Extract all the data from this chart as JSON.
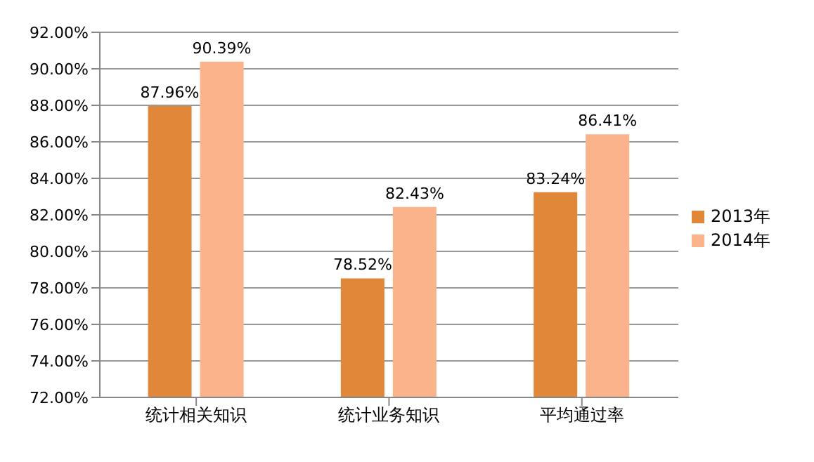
{
  "chart_data": {
    "type": "bar",
    "categories": [
      "统计相关知识",
      "统计业务知识",
      "平均通过率"
    ],
    "series": [
      {
        "name": "2013年",
        "color": "#e0873a",
        "values": [
          87.96,
          78.52,
          83.24
        ],
        "value_labels": [
          "87.96%",
          "78.52%",
          "83.24%"
        ]
      },
      {
        "name": "2014年",
        "color": "#fbb38c",
        "values": [
          90.39,
          82.43,
          86.41
        ],
        "value_labels": [
          "90.39%",
          "82.43%",
          "86.41%"
        ]
      }
    ],
    "ylim": [
      72,
      92
    ],
    "yticks": [
      {
        "value": 72,
        "label": "72.00%"
      },
      {
        "value": 74,
        "label": "74.00%"
      },
      {
        "value": 76,
        "label": "76.00%"
      },
      {
        "value": 78,
        "label": "78.00%"
      },
      {
        "value": 80,
        "label": "80.00%"
      },
      {
        "value": 82,
        "label": "82.00%"
      },
      {
        "value": 84,
        "label": "84.00%"
      },
      {
        "value": 86,
        "label": "86.00%"
      },
      {
        "value": 88,
        "label": "88.00%"
      },
      {
        "value": 90,
        "label": "90.00%"
      },
      {
        "value": 92,
        "label": "92.00%"
      }
    ],
    "grid": "y",
    "legend": "right"
  }
}
